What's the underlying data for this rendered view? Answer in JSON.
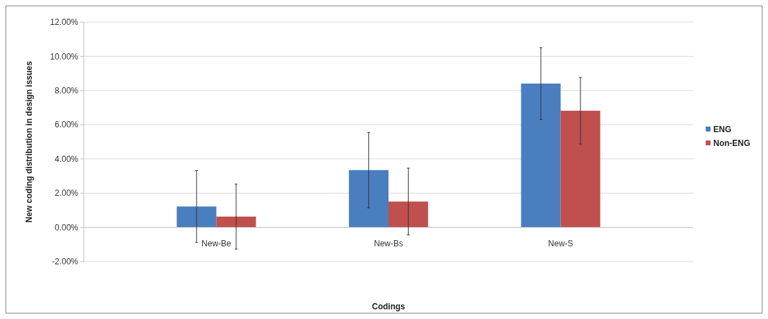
{
  "chart_data": {
    "type": "bar",
    "xlabel": "Codings",
    "ylabel": "New coding distribution in design issues",
    "categories": [
      "New-Be",
      "New-Bs",
      "New-S"
    ],
    "series": [
      {
        "name": "ENG",
        "color": "#4a7ebf",
        "values": [
          1.22,
          3.35,
          8.41
        ],
        "errors": [
          2.1,
          2.2,
          2.1
        ]
      },
      {
        "name": "Non-ENG",
        "color": "#c0504d",
        "values": [
          0.63,
          1.51,
          6.82
        ],
        "errors": [
          1.9,
          1.95,
          1.95
        ]
      }
    ],
    "ylim": [
      -2,
      12
    ],
    "yticks": [
      {
        "value": -2,
        "label": "-2.00%"
      },
      {
        "value": 0,
        "label": "0.00%"
      },
      {
        "value": 2,
        "label": "2.00%"
      },
      {
        "value": 4,
        "label": "4.00%"
      },
      {
        "value": 6,
        "label": "6.00%"
      },
      {
        "value": 8,
        "label": "8.00%"
      },
      {
        "value": 10,
        "label": "10.00%"
      },
      {
        "value": 12,
        "label": "12.00%"
      }
    ],
    "grid": "y",
    "legend": "right"
  }
}
